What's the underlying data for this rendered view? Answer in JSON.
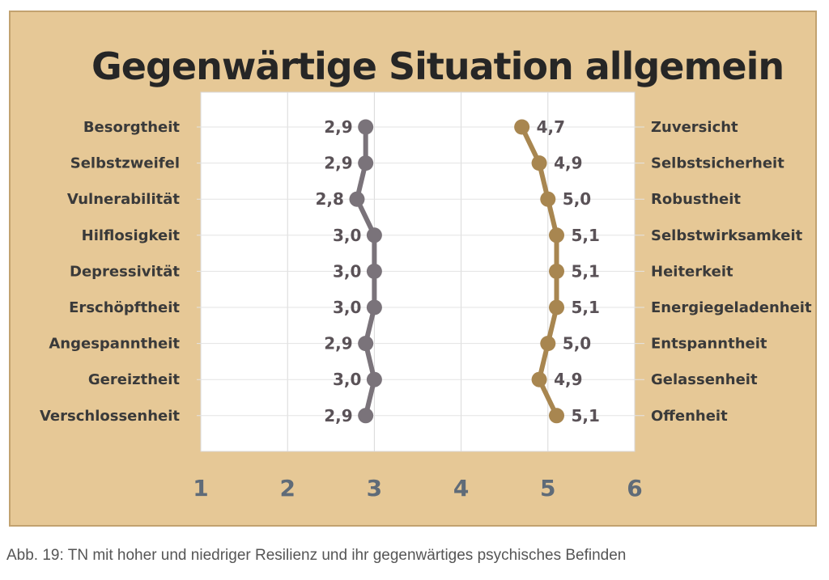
{
  "chart_data": {
    "type": "line",
    "title": "Gegenwärtige Situation allgemein",
    "xlim": [
      1,
      6
    ],
    "x_ticks": [
      "1",
      "2",
      "3",
      "4",
      "5",
      "6"
    ],
    "grid": true,
    "left_categories": [
      "Besorgtheit",
      "Selbstzweifel",
      "Vulnerabilität",
      "Hilflosigkeit",
      "Depressivität",
      "Erschöpftheit",
      "Angespanntheit",
      "Gereiztheit",
      "Verschlossenheit"
    ],
    "right_categories": [
      "Zuversicht",
      "Selbstsicherheit",
      "Robustheit",
      "Selbstwirksamkeit",
      "Heiterkeit",
      "Energiegeladenheit",
      "Entspanntheit",
      "Gelassenheit",
      "Offenheit"
    ],
    "series": [
      {
        "values": [
          2.9,
          2.9,
          2.8,
          3.0,
          3.0,
          3.0,
          2.9,
          3.0,
          2.9
        ],
        "labels": [
          "2,9",
          "2,9",
          "2,8",
          "3,0",
          "3,0",
          "3,0",
          "2,9",
          "3,0",
          "2,9"
        ],
        "color": "#7a737a"
      },
      {
        "values": [
          4.7,
          4.9,
          5.0,
          5.1,
          5.1,
          5.1,
          5.0,
          4.9,
          5.1
        ],
        "labels": [
          "4,7",
          "4,9",
          "5,0",
          "5,1",
          "5,1",
          "5,1",
          "5,0",
          "4,9",
          "5,1"
        ],
        "color": "#a88650"
      }
    ]
  },
  "caption": "Abb. 19: TN mit hoher und niedriger Resilienz und ihr gegenwärtiges psychisches Befinden",
  "colors": {
    "background": "#e6c896",
    "plot_area": "#ffffff"
  }
}
